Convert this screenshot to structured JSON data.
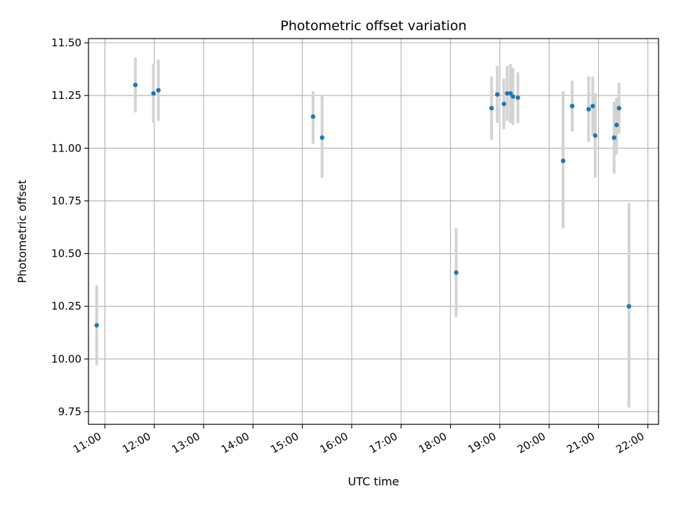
{
  "chart_data": {
    "type": "scatter",
    "title": "Photometric offset variation",
    "xlabel": "UTC time",
    "ylabel": "Photometric offset",
    "xlim": [
      "10:40",
      "22:13"
    ],
    "ylim": [
      9.69,
      11.52
    ],
    "x_ticks": [
      "11:00",
      "12:00",
      "13:00",
      "14:00",
      "15:00",
      "16:00",
      "17:00",
      "18:00",
      "19:00",
      "20:00",
      "21:00",
      "22:00"
    ],
    "y_ticks": [
      "9.75",
      "10.00",
      "10.25",
      "10.50",
      "10.75",
      "11.00",
      "11.25",
      "11.50"
    ],
    "grid": true,
    "point_color": "#1f77b4",
    "errorbar_color": "#d3d3d3",
    "points": [
      {
        "x": "10:50",
        "y": 10.16,
        "y_low": 9.97,
        "y_high": 10.35
      },
      {
        "x": "11:37",
        "y": 11.3,
        "y_low": 11.17,
        "y_high": 11.43
      },
      {
        "x": "11:59",
        "y": 11.26,
        "y_low": 11.12,
        "y_high": 11.4
      },
      {
        "x": "12:05",
        "y": 11.275,
        "y_low": 11.13,
        "y_high": 11.42
      },
      {
        "x": "15:13",
        "y": 11.15,
        "y_low": 11.02,
        "y_high": 11.27
      },
      {
        "x": "15:24",
        "y": 11.05,
        "y_low": 10.86,
        "y_high": 11.25
      },
      {
        "x": "18:07",
        "y": 10.41,
        "y_low": 10.2,
        "y_high": 10.62
      },
      {
        "x": "18:50",
        "y": 11.19,
        "y_low": 11.04,
        "y_high": 11.34
      },
      {
        "x": "18:57",
        "y": 11.255,
        "y_low": 11.12,
        "y_high": 11.39
      },
      {
        "x": "19:05",
        "y": 11.21,
        "y_low": 11.09,
        "y_high": 11.33
      },
      {
        "x": "19:09",
        "y": 11.26,
        "y_low": 11.13,
        "y_high": 11.39
      },
      {
        "x": "19:13",
        "y": 11.26,
        "y_low": 11.12,
        "y_high": 11.4
      },
      {
        "x": "19:16",
        "y": 11.245,
        "y_low": 11.11,
        "y_high": 11.38
      },
      {
        "x": "19:22",
        "y": 11.24,
        "y_low": 11.12,
        "y_high": 11.36
      },
      {
        "x": "20:17",
        "y": 10.94,
        "y_low": 10.62,
        "y_high": 11.27
      },
      {
        "x": "20:28",
        "y": 11.2,
        "y_low": 11.08,
        "y_high": 11.32
      },
      {
        "x": "20:48",
        "y": 11.185,
        "y_low": 11.03,
        "y_high": 11.34
      },
      {
        "x": "20:53",
        "y": 11.2,
        "y_low": 11.06,
        "y_high": 11.34
      },
      {
        "x": "20:56",
        "y": 11.06,
        "y_low": 10.86,
        "y_high": 11.26
      },
      {
        "x": "21:19",
        "y": 11.05,
        "y_low": 10.88,
        "y_high": 11.22
      },
      {
        "x": "21:22",
        "y": 11.11,
        "y_low": 10.97,
        "y_high": 11.24
      },
      {
        "x": "21:25",
        "y": 11.19,
        "y_low": 11.07,
        "y_high": 11.31
      },
      {
        "x": "21:37",
        "y": 10.25,
        "y_low": 9.77,
        "y_high": 10.74
      }
    ]
  }
}
